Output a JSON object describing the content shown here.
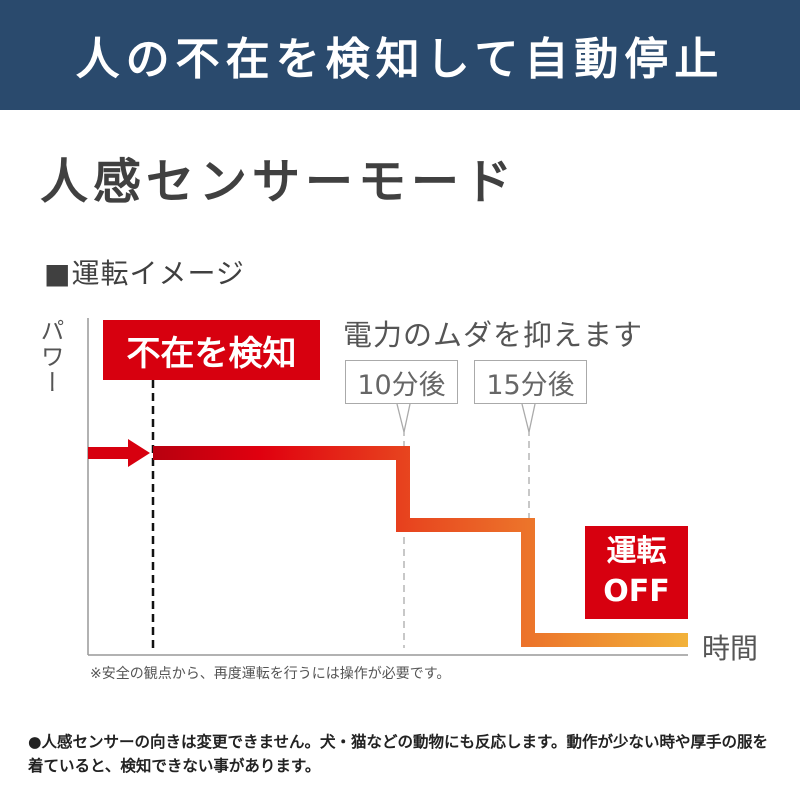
{
  "banner": {
    "title": "人の不在を検知して自動停止",
    "background": "#2a4a6d"
  },
  "mode_title": "人感センサーモード",
  "section_label": "■運転イメージ",
  "diagram": {
    "y_axis_label": "パワー",
    "x_axis_label": "時間",
    "detect_label": "不在を検知",
    "save_label": "電力のムダを抑えます",
    "callouts": [
      "10分後",
      "15分後"
    ],
    "off_label_line1": "運転",
    "off_label_line2": "OFF",
    "accent_red": "#d7000f",
    "gradient_end": "#f0b030"
  },
  "footnote": "※安全の観点から、再度運転を行うには操作が必要です。",
  "note": "●人感センサーの向きは変更できません。犬・猫などの動物にも反応します。動作が少ない時や厚手の服を着ていると、検知できない事があります。"
}
